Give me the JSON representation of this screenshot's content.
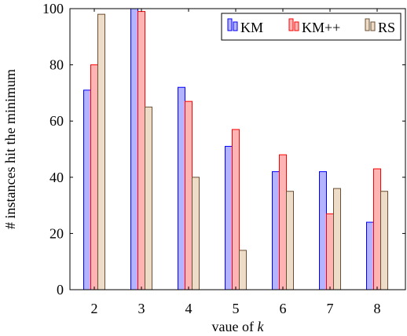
{
  "chart_data": {
    "type": "bar",
    "categories": [
      "2",
      "3",
      "4",
      "5",
      "6",
      "7",
      "8"
    ],
    "series": [
      {
        "name": "KM",
        "values": [
          71,
          100,
          72,
          51,
          42,
          42,
          24
        ],
        "fill": "#b3b3ff",
        "stroke": "#0000ff"
      },
      {
        "name": "KM++",
        "values": [
          80,
          99,
          67,
          57,
          48,
          27,
          43
        ],
        "fill": "#ffb3b3",
        "stroke": "#ff0000"
      },
      {
        "name": "RS",
        "values": [
          98,
          65,
          40,
          14,
          35,
          36,
          35
        ],
        "fill": "#ecdcc8",
        "stroke": "#6b4f33"
      }
    ],
    "xlabel_prefix": "vaue of",
    "xlabel_var": "k",
    "ylabel": "# instances hit the minimum",
    "ylim": [
      0,
      100
    ],
    "yticks": [
      0,
      20,
      40,
      60,
      80,
      100
    ],
    "grid": false,
    "legend_position": "top-right"
  }
}
